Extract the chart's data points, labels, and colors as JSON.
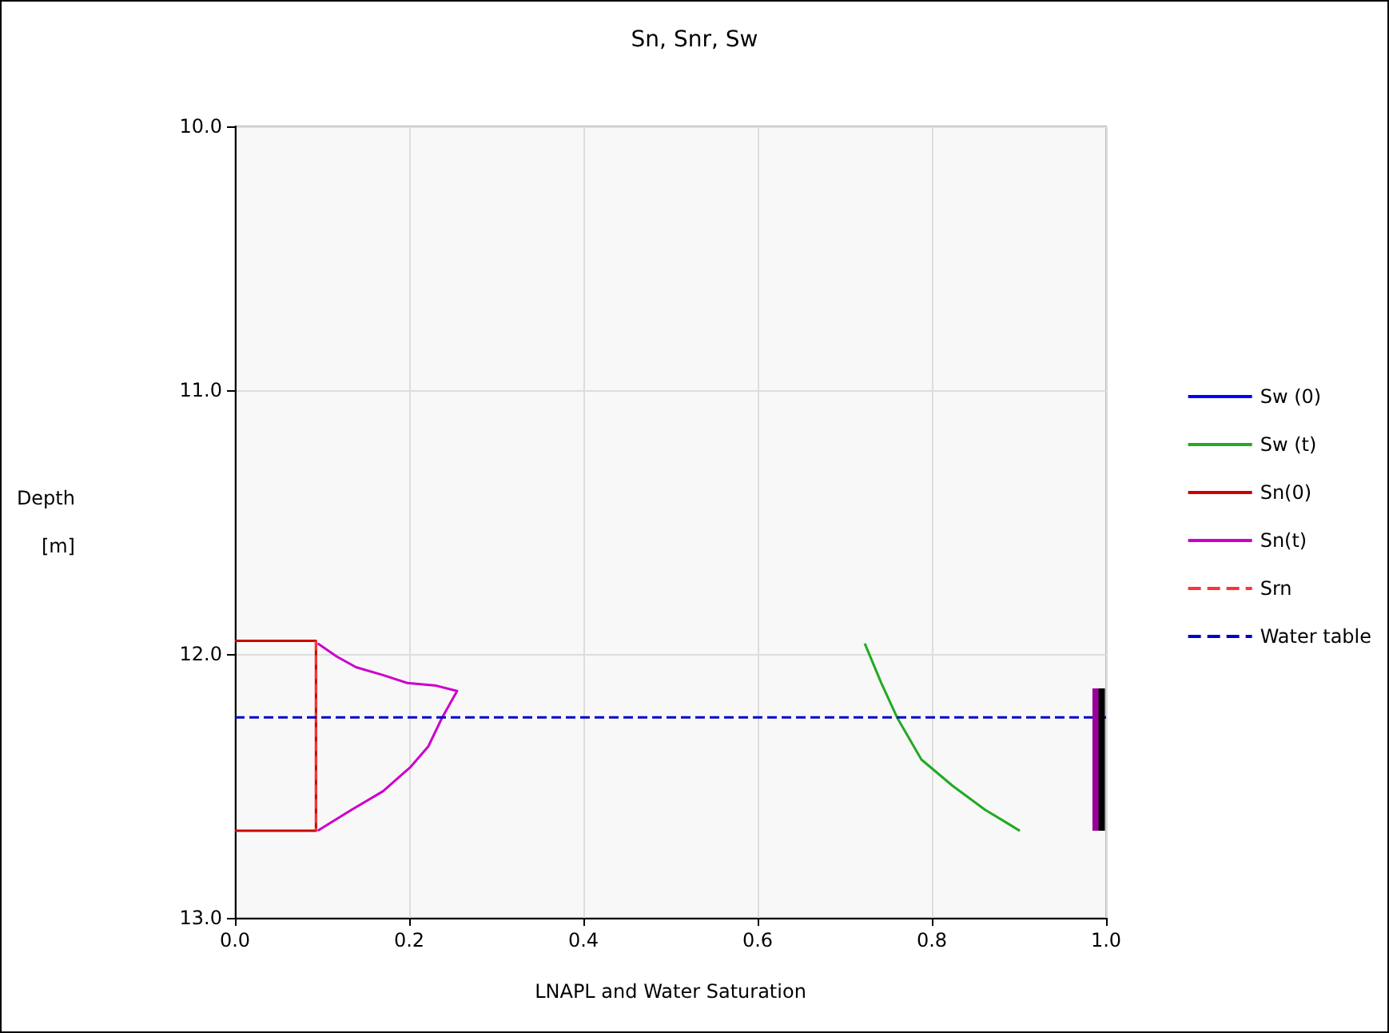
{
  "chart_data": {
    "type": "line",
    "title": "Sn, Snr, Sw",
    "xlabel": "LNAPL and Water Saturation",
    "ylabel": "Depth\n[m]",
    "xlim": [
      0,
      1
    ],
    "xticks": [
      {
        "value": 0,
        "label": "0.0"
      },
      0.2,
      0.4,
      0.6,
      0.8,
      {
        "value": 1,
        "label": "1.0"
      }
    ],
    "ylim": [
      13,
      10
    ],
    "yticks": [
      {
        "value": 10,
        "label": "10.0"
      },
      {
        "value": 11,
        "label": "11.0"
      },
      {
        "value": 12,
        "label": "12.0"
      },
      {
        "value": 13,
        "label": "13.0"
      }
    ],
    "grid": true,
    "legend": "right",
    "marker": "none",
    "series": [
      {
        "name": "Sw (0)",
        "color": "#0000ff"
      },
      {
        "name": "Sw (t)",
        "color": "#22aa22",
        "x": [
          0.723,
          0.742,
          0.76,
          0.788,
          0.824,
          0.861,
          0.901
        ],
        "values": [
          11.96,
          12.11,
          12.24,
          12.4,
          12.5,
          12.59,
          12.67
        ]
      },
      {
        "name": "Sn(0)",
        "color": "#cc0000",
        "x": [
          0,
          0.093,
          0.093,
          0
        ],
        "values": [
          11.95,
          11.95,
          12.67,
          12.67
        ]
      },
      {
        "name": "Sn(t)",
        "color": "#cc00cc",
        "x": [
          0.095,
          0.117,
          0.139,
          0.17,
          0.198,
          0.231,
          0.255,
          0.238,
          0.222,
          0.201,
          0.17,
          0.134,
          0.095
        ],
        "values": [
          11.96,
          12.01,
          12.05,
          12.08,
          12.11,
          12.12,
          12.14,
          12.24,
          12.35,
          12.43,
          12.52,
          12.59,
          12.67
        ]
      },
      {
        "name": "Srn",
        "color": "#ff3333",
        "line_style": "dashed",
        "x": [
          0.093,
          0.093
        ],
        "values": [
          11.95,
          12.67
        ]
      },
      {
        "name": "Water table",
        "color": "#0000cc",
        "line_style": "dashed",
        "x": [
          0,
          1
        ],
        "values": [
          12.24,
          12.24
        ]
      },
      {
        "color": "#990099",
        "x": [
          0.988,
          0.988
        ],
        "values": [
          12.13,
          12.67
        ]
      },
      {
        "color": "#000000",
        "x": [
          0.995,
          0.995
        ],
        "values": [
          12.13,
          12.67
        ]
      }
    ]
  }
}
